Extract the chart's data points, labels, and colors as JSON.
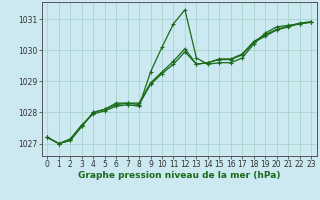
{
  "xlabel": "Graphe pression niveau de la mer (hPa)",
  "background_color": "#cce8f0",
  "grid_color": "#aad4cc",
  "line_color": "#1a6b1a",
  "x_ticks": [
    0,
    1,
    2,
    3,
    4,
    5,
    6,
    7,
    8,
    9,
    10,
    11,
    12,
    13,
    14,
    15,
    16,
    17,
    18,
    19,
    20,
    21,
    22,
    23
  ],
  "ylim": [
    1026.6,
    1031.55
  ],
  "xlim": [
    -0.5,
    23.5
  ],
  "yticks": [
    1027,
    1028,
    1029,
    1030,
    1031
  ],
  "series1_y": [
    1027.2,
    1027.0,
    1027.15,
    1027.6,
    1027.95,
    1028.05,
    1028.2,
    1028.25,
    1028.2,
    1029.3,
    1030.1,
    1030.85,
    1031.3,
    1029.75,
    1029.55,
    1029.6,
    1029.6,
    1029.75,
    1030.2,
    1030.55,
    1030.75,
    1030.8,
    1030.85,
    1030.9
  ],
  "series2_y": [
    1027.2,
    1027.0,
    1027.1,
    1027.55,
    1028.0,
    1028.1,
    1028.25,
    1028.3,
    1028.25,
    1028.9,
    1029.25,
    1029.55,
    1029.95,
    1029.55,
    1029.6,
    1029.7,
    1029.7,
    1029.85,
    1030.25,
    1030.45,
    1030.65,
    1030.75,
    1030.85,
    1030.9
  ],
  "series3_y": [
    1027.2,
    1027.0,
    1027.1,
    1027.55,
    1028.0,
    1028.1,
    1028.3,
    1028.3,
    1028.3,
    1028.95,
    1029.3,
    1029.65,
    1030.05,
    1029.55,
    1029.6,
    1029.72,
    1029.72,
    1029.88,
    1030.28,
    1030.5,
    1030.67,
    1030.77,
    1030.87,
    1030.92
  ],
  "marker": "+",
  "marker_size": 3.5,
  "line_width": 0.9,
  "xlabel_fontsize": 6.5,
  "tick_fontsize": 5.5,
  "xlabel_fontweight": "bold",
  "xlabel_color": "#1a6b1a"
}
